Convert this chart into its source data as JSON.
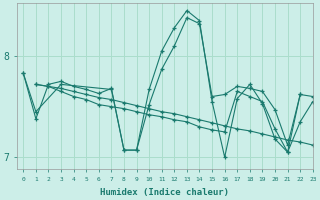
{
  "xlabel": "Humidex (Indice chaleur)",
  "bg_color": "#cceee8",
  "grid_color": "#aaddcc",
  "line_color": "#1a7a6e",
  "xlim": [
    -0.5,
    23
  ],
  "ylim": [
    6.88,
    8.52
  ],
  "yticks": [
    7,
    8
  ],
  "xticks": [
    0,
    1,
    2,
    3,
    4,
    5,
    6,
    7,
    8,
    9,
    10,
    11,
    12,
    13,
    14,
    15,
    16,
    17,
    18,
    19,
    20,
    21,
    22,
    23
  ],
  "lines": [
    {
      "x": [
        0,
        1,
        2,
        3,
        4,
        5,
        6,
        7,
        8,
        9,
        10,
        11,
        12,
        13,
        14,
        15,
        16,
        17,
        18,
        19,
        20,
        21,
        22
      ],
      "y": [
        7.83,
        7.38,
        7.72,
        7.75,
        7.7,
        7.67,
        7.63,
        7.68,
        7.07,
        7.07,
        7.52,
        7.87,
        8.1,
        8.38,
        8.32,
        7.6,
        7.62,
        7.7,
        7.68,
        7.65,
        7.47,
        7.12,
        7.62
      ]
    },
    {
      "x": [
        1,
        2,
        3,
        4,
        5,
        6,
        7,
        8,
        9,
        10,
        11,
        12,
        13,
        14,
        15,
        16,
        17,
        18,
        19,
        20,
        21,
        22,
        23
      ],
      "y": [
        7.72,
        7.7,
        7.68,
        7.65,
        7.62,
        7.59,
        7.57,
        7.54,
        7.51,
        7.48,
        7.45,
        7.43,
        7.4,
        7.37,
        7.34,
        7.31,
        7.28,
        7.26,
        7.23,
        7.2,
        7.17,
        7.15,
        7.12
      ]
    },
    {
      "x": [
        1,
        2,
        3,
        4,
        5,
        6,
        7,
        8,
        9,
        10,
        11,
        12,
        13,
        14,
        15,
        16,
        17,
        18,
        19,
        20,
        21,
        22,
        23
      ],
      "y": [
        7.72,
        7.7,
        7.65,
        7.6,
        7.57,
        7.52,
        7.5,
        7.48,
        7.45,
        7.42,
        7.4,
        7.37,
        7.35,
        7.3,
        7.27,
        7.25,
        7.65,
        7.6,
        7.55,
        7.28,
        7.05,
        7.35,
        7.55
      ]
    },
    {
      "x": [
        0,
        1,
        3,
        7,
        8,
        9,
        10,
        11,
        12,
        13,
        14,
        15,
        16,
        17,
        18,
        19,
        20,
        21,
        22,
        23
      ],
      "y": [
        7.83,
        7.45,
        7.72,
        7.67,
        7.07,
        7.07,
        7.67,
        8.05,
        8.28,
        8.45,
        8.35,
        7.55,
        7.0,
        7.58,
        7.72,
        7.53,
        7.18,
        7.05,
        7.62,
        7.6
      ]
    }
  ]
}
